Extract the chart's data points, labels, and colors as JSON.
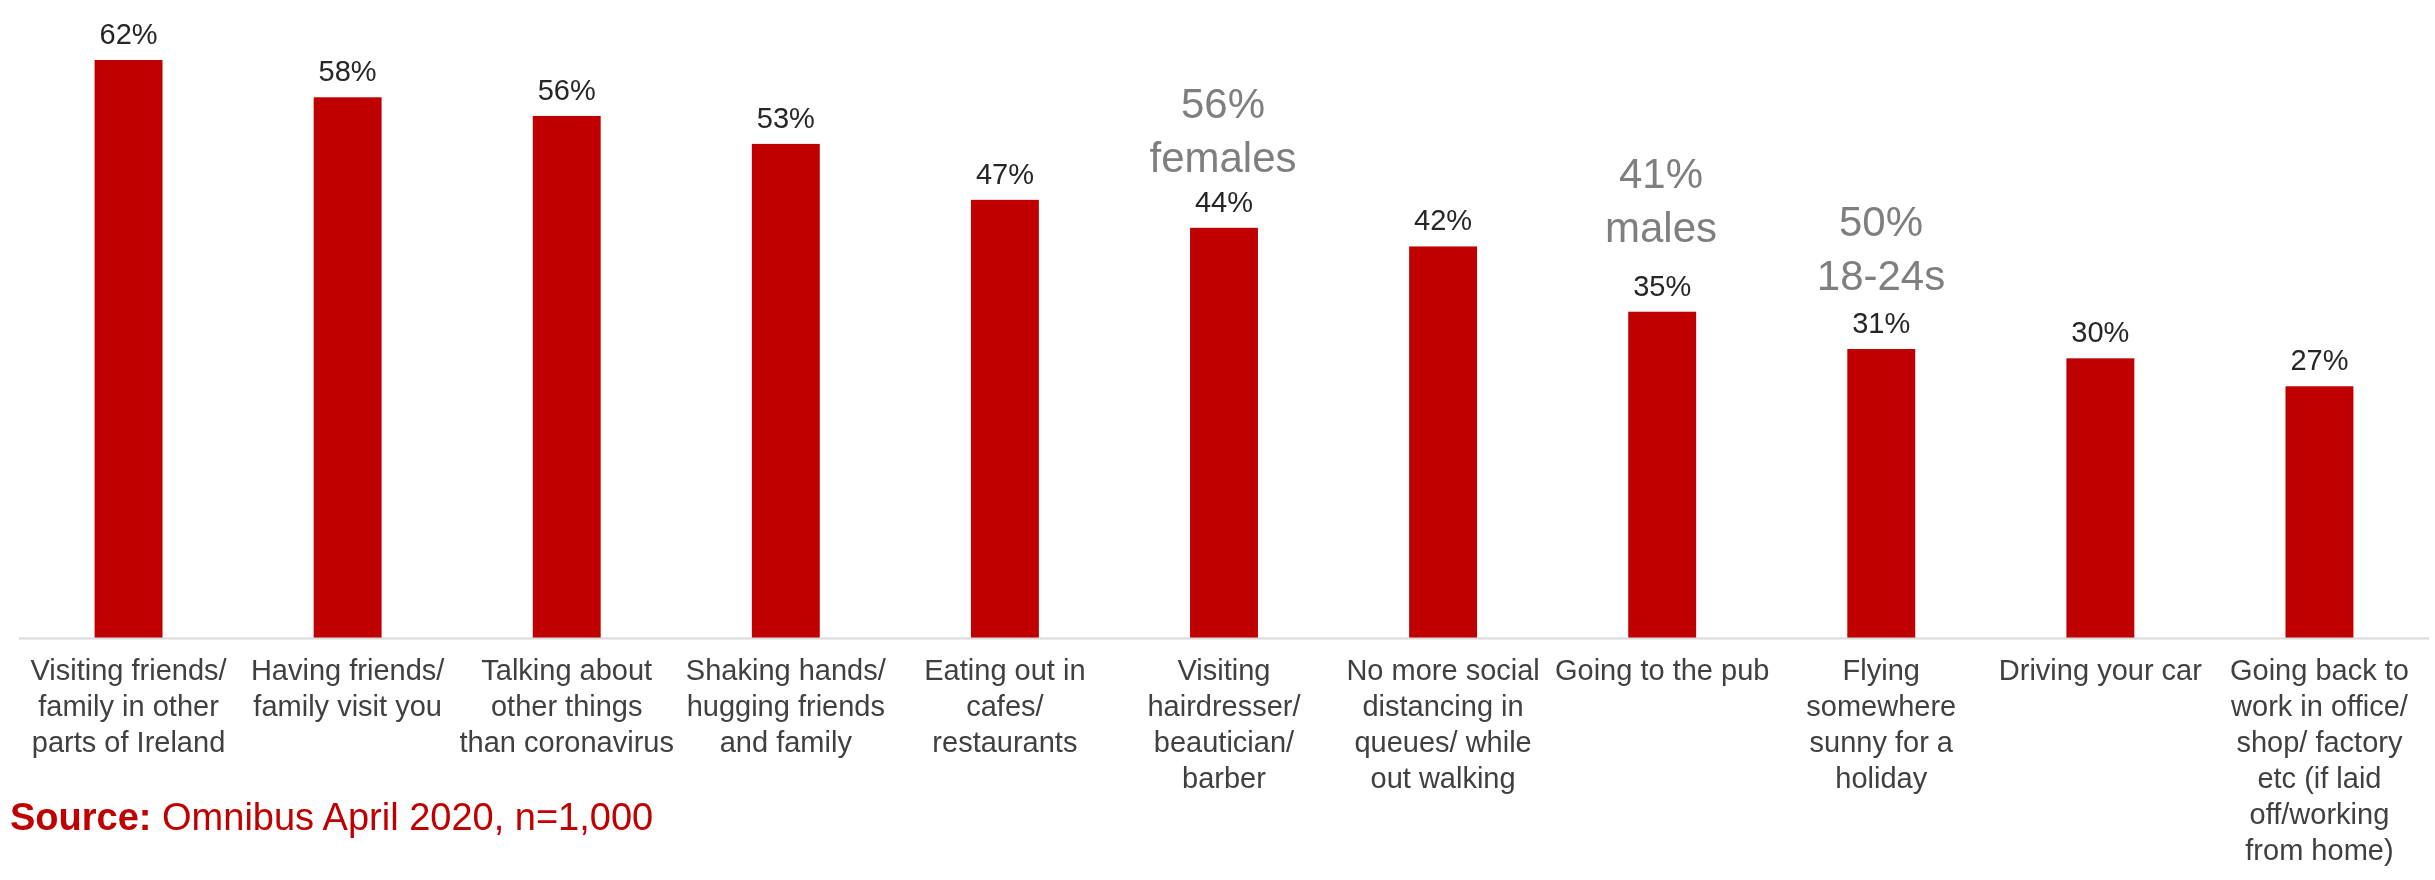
{
  "chart_data": {
    "type": "bar",
    "categories": [
      "Visiting friends/\nfamily in other\nparts of Ireland",
      "Having friends/\nfamily visit you",
      "Talking about\nother things\nthan coronavirus",
      "Shaking hands/\nhugging friends\nand family",
      "Eating out in\ncafes/\nrestaurants",
      "Visiting\nhairdresser/\nbeautician/\nbarber",
      "No more social\ndistancing in\nqueues/ while\nout walking",
      "Going to the pub",
      "Flying\nsomewhere\nsunny for a\nholiday",
      "Driving your car",
      "Going back to\nwork in office/\nshop/ factory\netc (if laid\noff/working\nfrom home)"
    ],
    "values": [
      62,
      58,
      56,
      53,
      47,
      44,
      42,
      35,
      31,
      30,
      27
    ],
    "color": "#c00000",
    "data_labels": true,
    "value_labels": [
      "62%",
      "58%",
      "56%",
      "53%",
      "47%",
      "44%",
      "42%",
      "35%",
      "31%",
      "30%",
      "27%"
    ],
    "annotations": [
      "56%\nfemales",
      "41%\nmales",
      "50%\n18-24s",
      "Source: Omnibus April 2020, n=1,000"
    ]
  }
}
